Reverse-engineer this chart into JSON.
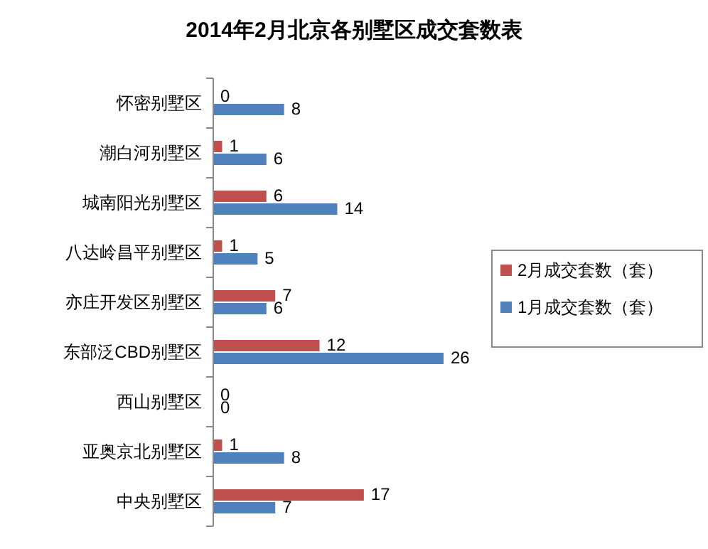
{
  "chart_data": {
    "type": "bar",
    "orientation": "horizontal",
    "title": "2014年2月北京各别墅区成交套数表",
    "categories": [
      "怀密别墅区",
      "潮白河别墅区",
      "城南阳光别墅区",
      "八达岭昌平别墅区",
      "亦庄开发区别墅区",
      "东部泛CBD别墅区",
      "西山别墅区",
      "亚奥京北别墅区",
      "中央别墅区"
    ],
    "series": [
      {
        "name": "2月成交套数（套）",
        "color": "#c0504d",
        "values": [
          0,
          1,
          6,
          1,
          7,
          12,
          0,
          1,
          17
        ]
      },
      {
        "name": "1月成交套数（套）",
        "color": "#4f81bd",
        "values": [
          8,
          6,
          14,
          5,
          6,
          26,
          0,
          8,
          7
        ]
      }
    ],
    "data_labels": true,
    "legend": "right",
    "grid": false
  }
}
